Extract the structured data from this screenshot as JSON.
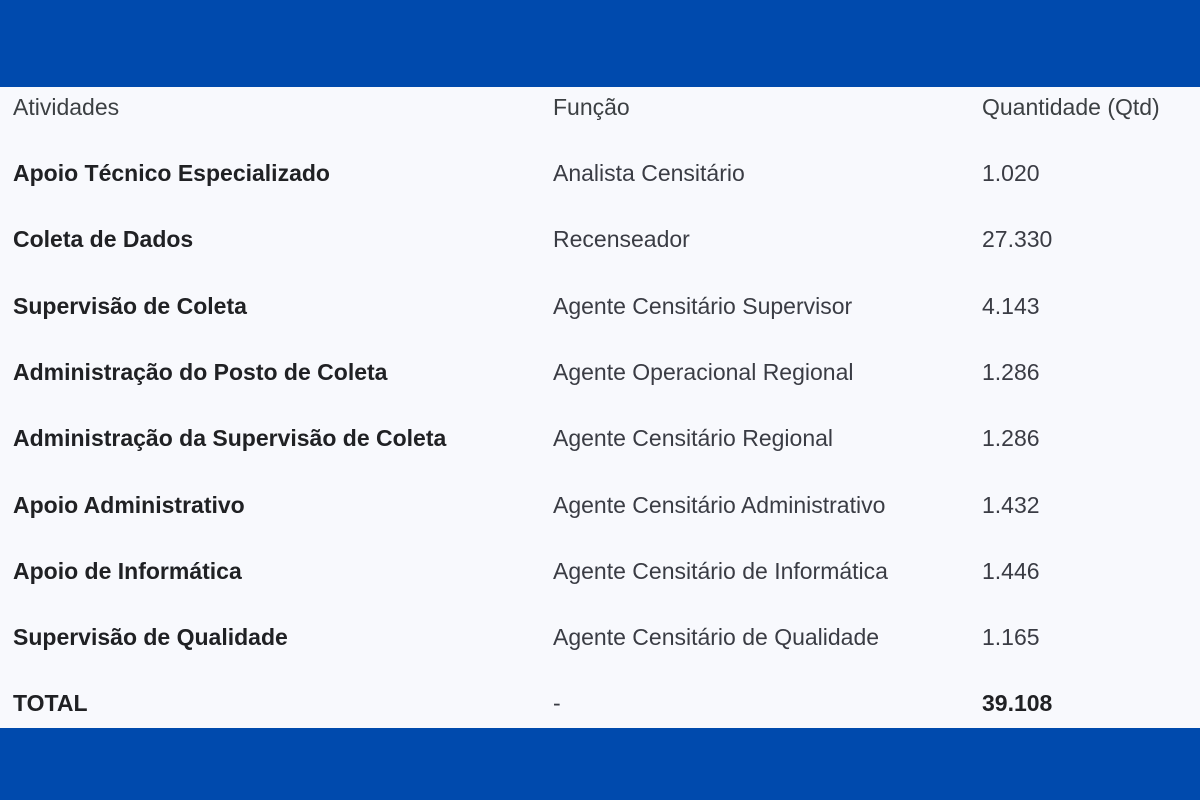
{
  "colors": {
    "background": "#004aad",
    "panel": "#f8f9fd"
  },
  "table": {
    "headers": [
      "Atividades",
      "Função",
      "Quantidade (Qtd)"
    ],
    "rows": [
      [
        "Apoio Técnico Especializado",
        "Analista Censitário",
        "1.020"
      ],
      [
        "Coleta de Dados",
        "Recenseador",
        "27.330"
      ],
      [
        "Supervisão de Coleta",
        "Agente Censitário Supervisor",
        "4.143"
      ],
      [
        "Administração do Posto de Coleta",
        "Agente Operacional Regional",
        "1.286"
      ],
      [
        "Administração da Supervisão de Coleta",
        "Agente Censitário Regional",
        "1.286"
      ],
      [
        "Apoio Administrativo",
        "Agente Censitário Administrativo",
        "1.432"
      ],
      [
        "Apoio de Informática",
        "Agente Censitário de Informática",
        "1.446"
      ],
      [
        "Supervisão de Qualidade",
        "Agente Censitário de Qualidade",
        "1.165"
      ]
    ],
    "total": [
      "TOTAL",
      "-",
      "39.108"
    ]
  }
}
